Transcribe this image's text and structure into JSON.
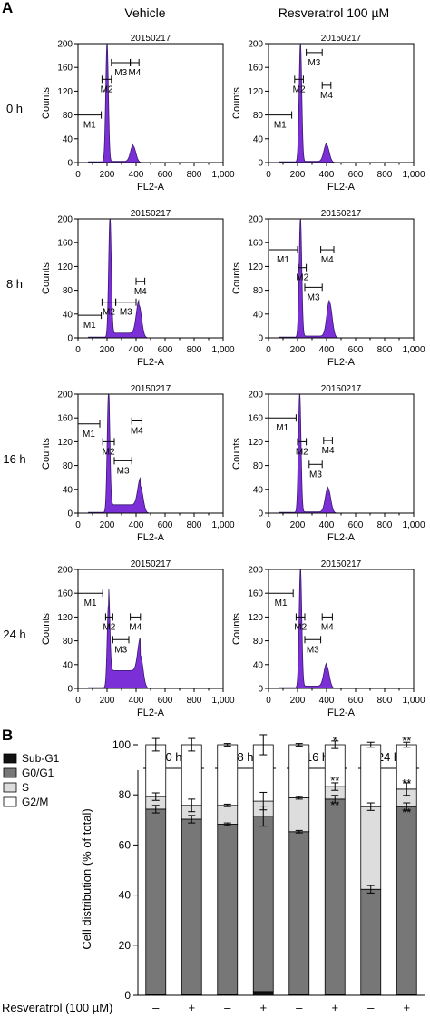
{
  "panel_a": {
    "label": "A",
    "col_titles": [
      "Vehicle",
      "Resveratrol 100 µM"
    ],
    "row_labels": [
      "0 h",
      "8 h",
      "16 h",
      "24 h"
    ],
    "sample_id": "20150217",
    "ylabel": "Counts",
    "xlabel": "FL2-A",
    "xticks": [
      "0",
      "200",
      "400",
      "600",
      "800",
      "1,000"
    ],
    "yticks": [
      "0",
      "40",
      "80",
      "120",
      "160",
      "200"
    ],
    "fill_color": "#7b2fd6"
  },
  "panel_b": {
    "label": "B",
    "legend": [
      {
        "name": "Sub-G1",
        "color": "#111111"
      },
      {
        "name": "G0/G1",
        "color": "#777777"
      },
      {
        "name": "S",
        "color": "#dddddd"
      },
      {
        "name": "G2/M",
        "color": "#ffffff"
      }
    ],
    "ylabel": "Cell distribution (% of total)",
    "yticks": [
      "0",
      "20",
      "40",
      "60",
      "80",
      "100"
    ],
    "group_labels": [
      "0 h",
      "8 h",
      "16 h",
      "24 h"
    ],
    "treatment_label": "Resveratrol (100 µM)",
    "treatment_marks": [
      "–",
      "+",
      "–",
      "+",
      "–",
      "+",
      "–",
      "+"
    ]
  },
  "chart_data": [
    {
      "type": "area",
      "title": "20150217",
      "panel": "A",
      "xlabel": "FL2-A",
      "ylabel": "Counts",
      "xlim": [
        0,
        1000
      ],
      "ylim": [
        0,
        200
      ],
      "histograms": [
        {
          "row": "0 h",
          "col": "Vehicle",
          "g1_peak": [
            200,
            200
          ],
          "g2_peak": [
            380,
            28
          ],
          "s_level": 2,
          "markers": [
            {
              "label": "M1",
              "x": [
                0,
                160
              ],
              "y": 80
            },
            {
              "label": "M2",
              "x": [
                165,
                230
              ],
              "y": 140
            },
            {
              "label": "M3",
              "x": [
                230,
                360
              ],
              "y": 168
            },
            {
              "label": "M4",
              "x": [
                360,
                420
              ],
              "y": 168
            }
          ]
        },
        {
          "row": "0 h",
          "col": "Resveratrol 100 µM",
          "g1_peak": [
            220,
            200
          ],
          "g2_peak": [
            400,
            30
          ],
          "s_level": 2,
          "markers": [
            {
              "label": "M1",
              "x": [
                0,
                160
              ],
              "y": 80
            },
            {
              "label": "M2",
              "x": [
                180,
                240
              ],
              "y": 140
            },
            {
              "label": "M3",
              "x": [
                260,
                370
              ],
              "y": 185
            },
            {
              "label": "M4",
              "x": [
                370,
                430
              ],
              "y": 130
            }
          ]
        },
        {
          "row": "8 h",
          "col": "Vehicle",
          "g1_peak": [
            220,
            200
          ],
          "g2_peak": [
            420,
            55
          ],
          "s_level": 8,
          "markers": [
            {
              "label": "M1",
              "x": [
                0,
                160
              ],
              "y": 38
            },
            {
              "label": "M2",
              "x": [
                165,
                260
              ],
              "y": 60
            },
            {
              "label": "M3",
              "x": [
                260,
                400
              ],
              "y": 60
            },
            {
              "label": "M4",
              "x": [
                400,
                460
              ],
              "y": 95
            }
          ]
        },
        {
          "row": "8 h",
          "col": "Resveratrol 100 µM",
          "g1_peak": [
            220,
            200
          ],
          "g2_peak": [
            420,
            60
          ],
          "s_level": 3,
          "markers": [
            {
              "label": "M1",
              "x": [
                0,
                200
              ],
              "y": 148
            },
            {
              "label": "M2",
              "x": [
                205,
                260
              ],
              "y": 118
            },
            {
              "label": "M3",
              "x": [
                250,
                370
              ],
              "y": 85
            },
            {
              "label": "M4",
              "x": [
                360,
                450
              ],
              "y": 148
            }
          ]
        },
        {
          "row": "16 h",
          "col": "Vehicle",
          "g1_peak": [
            210,
            200
          ],
          "g2_peak": [
            430,
            45
          ],
          "s_level": 14,
          "markers": [
            {
              "label": "M1",
              "x": [
                0,
                150
              ],
              "y": 150
            },
            {
              "label": "M2",
              "x": [
                170,
                250
              ],
              "y": 120
            },
            {
              "label": "M3",
              "x": [
                250,
                370
              ],
              "y": 88
            },
            {
              "label": "M4",
              "x": [
                370,
                440
              ],
              "y": 155
            }
          ]
        },
        {
          "row": "16 h",
          "col": "Resveratrol 100 µM",
          "g1_peak": [
            215,
            200
          ],
          "g2_peak": [
            410,
            42
          ],
          "s_level": 2,
          "markers": [
            {
              "label": "M1",
              "x": [
                0,
                190
              ],
              "y": 160
            },
            {
              "label": "M2",
              "x": [
                200,
                260
              ],
              "y": 120
            },
            {
              "label": "M3",
              "x": [
                280,
                370
              ],
              "y": 82
            },
            {
              "label": "M4",
              "x": [
                380,
                440
              ],
              "y": 122
            }
          ]
        },
        {
          "row": "24 h",
          "col": "Vehicle",
          "g1_peak": [
            210,
            140
          ],
          "g2_peak": [
            430,
            55
          ],
          "s_level": 30,
          "markers": [
            {
              "label": "M1",
              "x": [
                0,
                170
              ],
              "y": 160
            },
            {
              "label": "M2",
              "x": [
                190,
                240
              ],
              "y": 120
            },
            {
              "label": "M3",
              "x": [
                240,
                350
              ],
              "y": 82
            },
            {
              "label": "M4",
              "x": [
                360,
                430
              ],
              "y": 120
            }
          ]
        },
        {
          "row": "24 h",
          "col": "Resveratrol 100 µM",
          "g1_peak": [
            220,
            200
          ],
          "g2_peak": [
            400,
            38
          ],
          "s_level": 4,
          "markers": [
            {
              "label": "M1",
              "x": [
                0,
                170
              ],
              "y": 160
            },
            {
              "label": "M2",
              "x": [
                190,
                250
              ],
              "y": 120
            },
            {
              "label": "M3",
              "x": [
                250,
                360
              ],
              "y": 82
            },
            {
              "label": "M4",
              "x": [
                370,
                440
              ],
              "y": 120
            }
          ]
        }
      ]
    },
    {
      "type": "bar",
      "panel": "B",
      "ylabel": "Cell distribution (% of total)",
      "ylim": [
        0,
        100
      ],
      "categories": [
        "0 h –",
        "0 h +",
        "8 h –",
        "8 h +",
        "16 h –",
        "16 h +",
        "24 h –",
        "24 h +"
      ],
      "stacked": true,
      "series": [
        {
          "name": "Sub-G1",
          "values": [
            0.3,
            0.3,
            0.3,
            1.5,
            0.3,
            0.3,
            0.3,
            0.3
          ]
        },
        {
          "name": "G0/G1",
          "values": [
            74,
            70,
            68,
            70,
            65,
            78,
            42,
            75
          ]
        },
        {
          "name": "S",
          "values": [
            5,
            5.5,
            7.5,
            6,
            13.5,
            5,
            33,
            7
          ]
        },
        {
          "name": "G2/M",
          "values": [
            20.7,
            24.2,
            24.2,
            22.5,
            21.2,
            16.7,
            24.7,
            17.7
          ]
        }
      ],
      "error_bars": {
        "bottom": [
          1.5,
          1.5,
          0.5,
          4,
          0.5,
          1.5,
          1.5,
          1.5
        ],
        "mid": [
          1.5,
          2.5,
          0.5,
          3.5,
          0.5,
          1.5,
          1.5,
          2.5
        ],
        "top": [
          2.5,
          2.5,
          0.5,
          4,
          0.5,
          1.5,
          1,
          1
        ]
      },
      "annotations": [
        {
          "bar": "16 h +",
          "near": "top",
          "text": "*"
        },
        {
          "bar": "16 h +",
          "near": "mid",
          "text": "**"
        },
        {
          "bar": "16 h +",
          "near": "bottom",
          "text": "**"
        },
        {
          "bar": "24 h +",
          "near": "top",
          "text": "**"
        },
        {
          "bar": "24 h +",
          "near": "mid",
          "text": "**"
        },
        {
          "bar": "24 h +",
          "near": "bottom",
          "text": "**"
        }
      ]
    }
  ]
}
